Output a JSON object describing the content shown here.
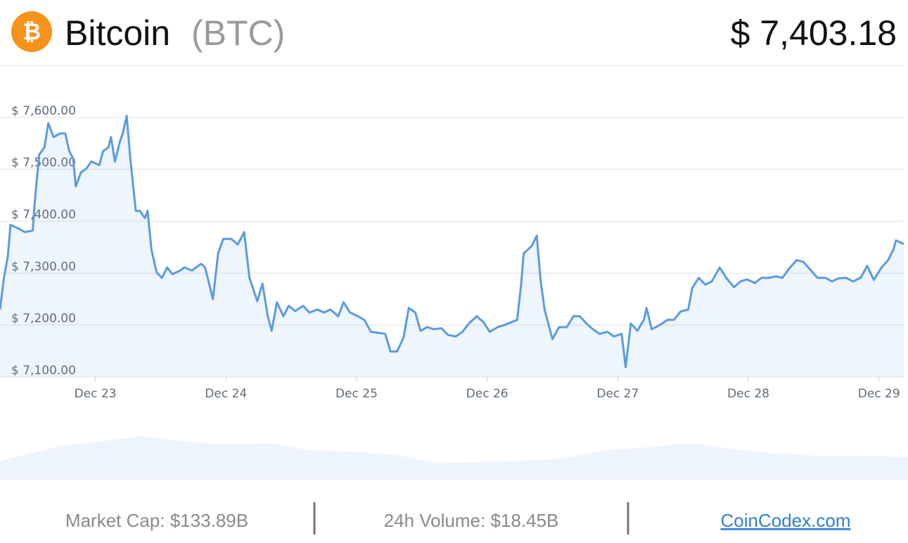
{
  "header": {
    "name": "Bitcoin",
    "symbol": "(BTC)",
    "price": "$ 7,403.18"
  },
  "chart_data": {
    "type": "line",
    "x": [
      22.27,
      22.3,
      22.33,
      22.35,
      22.41,
      22.46,
      22.52,
      22.54,
      22.57,
      22.61,
      22.64,
      22.68,
      22.73,
      22.77,
      22.8,
      22.83,
      22.85,
      22.89,
      22.93,
      22.97,
      23.03,
      23.06,
      23.1,
      23.12,
      23.15,
      23.19,
      23.21,
      23.24,
      23.27,
      23.31,
      23.34,
      23.38,
      23.4,
      23.43,
      23.47,
      23.51,
      23.55,
      23.59,
      23.65,
      23.68,
      23.74,
      23.81,
      23.84,
      23.88,
      23.9,
      23.94,
      23.98,
      24.04,
      24.09,
      24.14,
      24.18,
      24.24,
      24.28,
      24.32,
      24.35,
      24.39,
      24.44,
      24.48,
      24.53,
      24.59,
      24.64,
      24.7,
      24.75,
      24.8,
      24.86,
      24.9,
      24.95,
      25.01,
      25.06,
      25.11,
      25.17,
      25.22,
      25.26,
      25.31,
      25.36,
      25.4,
      25.45,
      25.49,
      25.54,
      25.59,
      25.65,
      25.7,
      25.76,
      25.81,
      25.86,
      25.92,
      25.97,
      26.02,
      26.08,
      26.13,
      26.19,
      26.23,
      26.26,
      26.28,
      26.34,
      26.38,
      26.41,
      26.44,
      26.5,
      26.55,
      26.61,
      26.66,
      26.71,
      26.76,
      26.81,
      26.86,
      26.92,
      26.97,
      27.03,
      27.06,
      27.1,
      27.15,
      27.2,
      27.22,
      27.26,
      27.32,
      27.38,
      27.43,
      27.48,
      27.54,
      27.57,
      27.62,
      27.67,
      27.72,
      27.78,
      27.83,
      27.89,
      27.94,
      27.99,
      28.05,
      28.1,
      28.16,
      28.21,
      28.26,
      28.32,
      28.37,
      28.42,
      28.48,
      28.53,
      28.59,
      28.64,
      28.69,
      28.75,
      28.8,
      28.86,
      28.91,
      28.96,
      29.02,
      29.07,
      29.11,
      29.13,
      29.19
    ],
    "series": [
      {
        "color": "#5b9be0",
        "values": [
          7230,
          7291,
          7332,
          7393,
          7386,
          7379,
          7382,
          7447,
          7528,
          7542,
          7589,
          7562,
          7569,
          7569,
          7535,
          7521,
          7467,
          7494,
          7501,
          7515,
          7508,
          7535,
          7542,
          7562,
          7515,
          7555,
          7569,
          7603,
          7515,
          7420,
          7420,
          7406,
          7420,
          7345,
          7301,
          7291,
          7311,
          7298,
          7305,
          7311,
          7305,
          7318,
          7311,
          7271,
          7250,
          7338,
          7366,
          7366,
          7355,
          7379,
          7291,
          7246,
          7280,
          7217,
          7189,
          7244,
          7217,
          7237,
          7227,
          7237,
          7224,
          7230,
          7224,
          7230,
          7217,
          7244,
          7224,
          7217,
          7210,
          7187,
          7185,
          7183,
          7149,
          7149,
          7176,
          7233,
          7224,
          7189,
          7196,
          7192,
          7194,
          7181,
          7178,
          7187,
          7203,
          7217,
          7206,
          7187,
          7196,
          7200,
          7206,
          7210,
          7278,
          7338,
          7352,
          7372,
          7284,
          7230,
          7173,
          7196,
          7196,
          7217,
          7217,
          7203,
          7192,
          7183,
          7187,
          7178,
          7183,
          7119,
          7203,
          7189,
          7210,
          7233,
          7192,
          7200,
          7210,
          7210,
          7226,
          7230,
          7271,
          7291,
          7278,
          7284,
          7311,
          7291,
          7273,
          7284,
          7288,
          7281,
          7291,
          7291,
          7294,
          7291,
          7311,
          7325,
          7322,
          7305,
          7291,
          7291,
          7284,
          7290,
          7291,
          7284,
          7291,
          7314,
          7287,
          7311,
          7325,
          7345,
          7363,
          7356
        ]
      }
    ],
    "xlim": [
      22.27,
      29.19
    ],
    "xticks": [
      {
        "value": 23,
        "label": "Dec 23"
      },
      {
        "value": 24,
        "label": "Dec 24"
      },
      {
        "value": 25,
        "label": "Dec 25"
      },
      {
        "value": 26,
        "label": "Dec 26"
      },
      {
        "value": 27,
        "label": "Dec 27"
      },
      {
        "value": 28,
        "label": "Dec 28"
      },
      {
        "value": 29,
        "label": "Dec 29"
      }
    ],
    "ylim": [
      7100,
      7700
    ],
    "yticks": [
      {
        "value": 7100,
        "label": "$ 7,100.00"
      },
      {
        "value": 7200,
        "label": "$ 7,200.00"
      },
      {
        "value": 7300,
        "label": "$ 7,300.00"
      },
      {
        "value": 7400,
        "label": "$ 7,400.00"
      },
      {
        "value": 7500,
        "label": "$ 7,500.00"
      },
      {
        "value": 7600,
        "label": "$ 7,600.00"
      }
    ],
    "grid": true
  },
  "footer": {
    "market_cap": "Market Cap: $133.89B",
    "volume": "24h Volume: $18.45B",
    "link": "CoinCodex.com"
  }
}
